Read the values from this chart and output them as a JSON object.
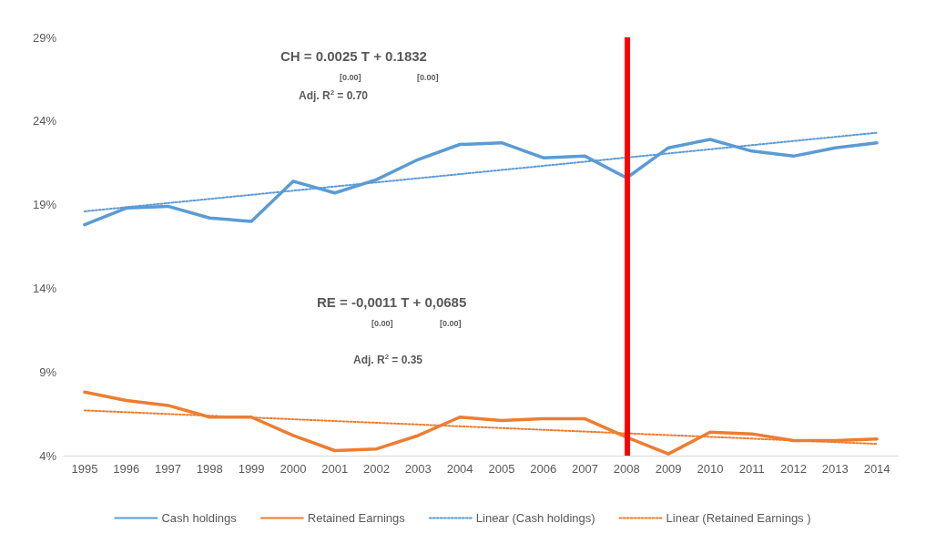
{
  "chart_data": {
    "type": "line",
    "categories": [
      "1995",
      "1996",
      "1997",
      "1998",
      "1999",
      "2000",
      "2001",
      "2002",
      "2003",
      "2004",
      "2005",
      "2006",
      "2007",
      "2008",
      "2009",
      "2010",
      "2011",
      "2012",
      "2013",
      "2014"
    ],
    "series": [
      {
        "name": "Cash holdings",
        "color": "#5b9bd5",
        "values": [
          17.8,
          18.8,
          18.9,
          18.2,
          18.0,
          20.4,
          19.7,
          20.5,
          21.7,
          22.6,
          22.7,
          21.8,
          21.9,
          20.6,
          22.4,
          22.9,
          22.2,
          21.9,
          22.4,
          22.7
        ]
      },
      {
        "name": "Retained Earnings",
        "color": "#ed7d31",
        "values": [
          7.8,
          7.3,
          7.0,
          6.3,
          6.3,
          5.2,
          4.3,
          4.4,
          5.2,
          6.3,
          6.1,
          6.2,
          6.2,
          5.1,
          4.1,
          5.4,
          5.3,
          4.9,
          4.9,
          5.0
        ]
      },
      {
        "name": "Linear (Cash holdings)",
        "color": "#5b9bd5",
        "line_style": "dotted",
        "values": [
          18.6,
          null,
          null,
          null,
          null,
          null,
          null,
          null,
          null,
          null,
          null,
          null,
          null,
          null,
          null,
          null,
          null,
          null,
          null,
          23.3
        ]
      },
      {
        "name": "Linear (Retained Earnings )",
        "color": "#ed7d31",
        "line_style": "dotted",
        "values": [
          6.7,
          null,
          null,
          null,
          null,
          null,
          null,
          null,
          null,
          null,
          null,
          null,
          null,
          null,
          null,
          null,
          null,
          null,
          null,
          4.7
        ]
      }
    ],
    "ylim": [
      4,
      29
    ],
    "yticks": [
      {
        "value": 4,
        "label": "4%"
      },
      {
        "value": 9,
        "label": "9%"
      },
      {
        "value": 14,
        "label": "14%"
      },
      {
        "value": 19,
        "label": "19%"
      },
      {
        "value": 24,
        "label": "24%"
      },
      {
        "value": 29,
        "label": "29%"
      }
    ],
    "ref_lines": [
      {
        "axis": "x",
        "value": "2008",
        "color": "#ff0000"
      }
    ],
    "annotations": [
      "CH = 0.0025 T + 0.1832",
      "[0.00]",
      "[0.00]",
      "Adj. R$^{2}$ = 0.70",
      "RE = -0,0011 T + 0,0685",
      "[0.00]",
      "[0.00]",
      "Adj. R$^{2}$ = 0.35"
    ],
    "grid": false,
    "legend": "bottom",
    "marker": "none",
    "line_style": "solid"
  }
}
